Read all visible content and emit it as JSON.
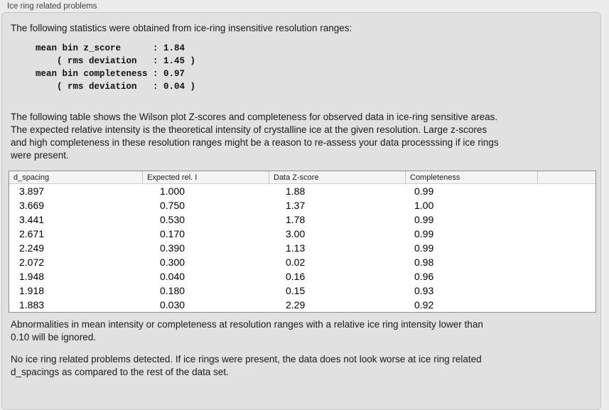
{
  "panel": {
    "title": "Ice ring related problems"
  },
  "intro_text": "The following statistics were obtained from ice-ring insensitive resolution ranges:",
  "stats_block": [
    "mean bin z_score      : 1.84",
    "    ( rms deviation   : 1.45 )",
    "mean bin completeness : 0.97",
    "    ( rms deviation   : 0.04 )"
  ],
  "table_description": [
    "The following table shows the Wilson plot Z-scores and completeness for observed data in ice-ring sensitive areas.",
    "The expected relative intensity is the theoretical intensity of crystalline ice at the given resolution. Large z-scores",
    "and high completeness in these resolution ranges might be a reason to re-assess your data processsing if ice rings",
    "were present."
  ],
  "table": {
    "headers": [
      "d_spacing",
      "Expected rel. I",
      "Data Z-score",
      "Completeness",
      ""
    ],
    "rows": [
      [
        "3.897",
        "1.000",
        "1.88",
        "0.99"
      ],
      [
        "3.669",
        "0.750",
        "1.37",
        "1.00"
      ],
      [
        "3.441",
        "0.530",
        "1.78",
        "0.99"
      ],
      [
        "2.671",
        "0.170",
        "3.00",
        "0.99"
      ],
      [
        "2.249",
        "0.390",
        "1.13",
        "0.99"
      ],
      [
        "2.072",
        "0.300",
        "0.02",
        "0.98"
      ],
      [
        "1.948",
        "0.040",
        "0.16",
        "0.96"
      ],
      [
        "1.918",
        "0.180",
        "0.15",
        "0.93"
      ],
      [
        "1.883",
        "0.030",
        "2.29",
        "0.92"
      ]
    ]
  },
  "abnormalities_note": [
    "Abnormalities in mean intensity or completeness at resolution ranges with a relative ice ring intensity lower than",
    "0.10 will be ignored."
  ],
  "conclusion": [
    "No ice ring related problems detected. If ice rings were present, the data does not look worse at ice ring related",
    "d_spacings as compared to the rest of the data set."
  ],
  "colors": {
    "page_bg": "#ececec",
    "panel_bg": "#e1e1e1",
    "panel_border": "#c7c7c7",
    "table_bg": "#ffffff",
    "table_border": "#8e8e8e",
    "table_header_bg": "#f4f4f4"
  }
}
